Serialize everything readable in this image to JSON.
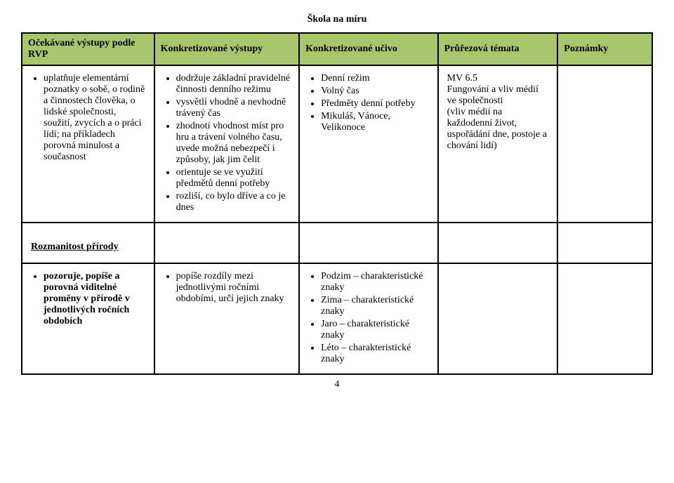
{
  "header_title": "Škola na míru",
  "columns": {
    "c1": "Očekávané výstupy podle RVP",
    "c2": "Konkretizované výstupy",
    "c3": "Konkretizované učivo",
    "c4": "Průřezová témata",
    "c5": "Poznámky"
  },
  "row1": {
    "col1_items": [
      "uplatňuje elementární poznatky o sobě, o rodině a činnostech člověka, o lidské společnosti, soužití, zvycích a o práci lidí; na příkladech porovná minulost a současnost"
    ],
    "col2_items": [
      "dodržuje základní pravidelné činnosti denního režimu",
      "vysvětlí vhodně a nevhodně trávený čas",
      "zhodnotí vhodnost míst pro hru a trávení volného času, uvede možná nebezpečí i způsoby, jak jim čelit",
      "orientuje se ve využití předmětů denní potřeby",
      "rozliší, co bylo dříve a co je dnes"
    ],
    "col3_items": [
      "Denní režim",
      "Volný čas",
      "Předměty denní potřeby",
      "Mikuláš, Vánoce, Velikonoce"
    ],
    "col4_text": "MV 6.5\nFungování a vliv médií ve společnosti\n(vliv médií na každodenní život, uspořádání dne, postoje a chování lidí)"
  },
  "section2_heading": "Rozmanitost přírody",
  "row2": {
    "col1_items": [
      "pozoruje, popíše a porovná viditelné proměny v přírodě v jednotlivých ročních obdobích"
    ],
    "col2_items": [
      "popíše rozdíly mezi jednotlivými ročními obdobími, určí jejich znaky"
    ],
    "col3_items": [
      "Podzim – charakteristické znaky",
      "Zima – charakteristické znaky",
      "Jaro – charakteristické znaky",
      "Léto – charakteristické znaky"
    ]
  },
  "page_number": "4"
}
